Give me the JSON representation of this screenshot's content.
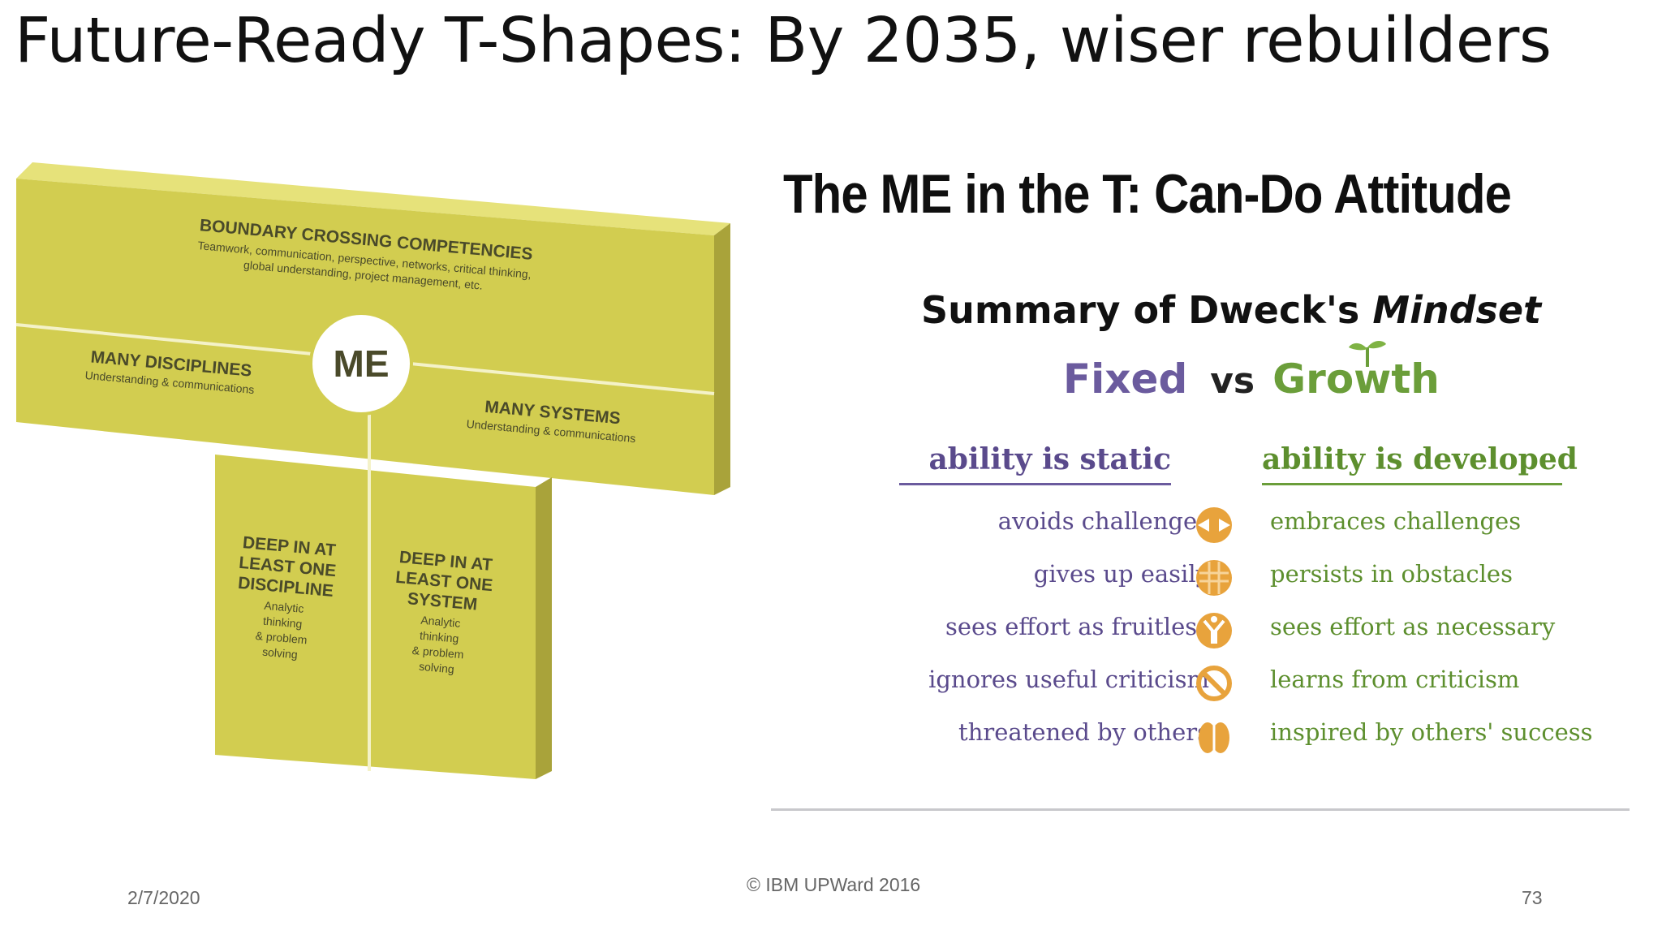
{
  "slide": {
    "title": "Future-Ready T-Shapes: By 2035, wiser rebuilders",
    "footer_date": "2/7/2020",
    "footer_copyright": "© IBM UPWard 2016",
    "page_number": "73"
  },
  "t_shape": {
    "colors": {
      "face": "#d2cd50",
      "top": "#e6e27a",
      "side": "#a9a33a",
      "line": "#f4f2c8"
    },
    "top_bar": {
      "heading": "BOUNDARY CROSSING COMPETENCIES",
      "desc_line1": "Teamwork, communication, perspective, networks, critical thinking,",
      "desc_line2": "global understanding, project management, etc."
    },
    "center_label": "ME",
    "left_arm": {
      "heading": "MANY DISCIPLINES",
      "desc": "Understanding & communications"
    },
    "right_arm": {
      "heading": "MANY SYSTEMS",
      "desc": "Understanding & communications"
    },
    "stem_left": {
      "heading_lines": [
        "DEEP IN AT",
        "LEAST ONE",
        "DISCIPLINE"
      ],
      "desc_lines": [
        "Analytic",
        "thinking",
        "& problem",
        "solving"
      ]
    },
    "stem_right": {
      "heading_lines": [
        "DEEP IN AT",
        "LEAST ONE",
        "SYSTEM"
      ],
      "desc_lines": [
        "Analytic",
        "thinking",
        "& problem",
        "solving"
      ]
    }
  },
  "mindset": {
    "title": "The ME in the T: Can-Do Attitude",
    "summary_prefix": "Summary of Dweck's ",
    "summary_italic": "Mindset",
    "fixed_label": "Fixed",
    "vs_label": "vs",
    "growth_label": "Growth",
    "fixed_header": "ability is static",
    "growth_header": "ability is developed",
    "colors": {
      "fixed": "#6b5b9e",
      "growth": "#6b9e3a",
      "icon": "#e8a33c"
    },
    "rows": [
      {
        "fixed": "avoids challenges",
        "growth": "embraces challenges",
        "icon": "challenge-icon"
      },
      {
        "fixed": "gives up easily",
        "growth": "persists in obstacles",
        "icon": "obstacle-icon"
      },
      {
        "fixed": "sees effort as fruitless",
        "growth": "sees effort as necessary",
        "icon": "effort-icon"
      },
      {
        "fixed": "ignores useful criticism",
        "growth": "learns from criticism",
        "icon": "criticism-icon"
      },
      {
        "fixed": "threatened by others",
        "growth": "inspired by others' success",
        "icon": "success-icon"
      }
    ]
  }
}
